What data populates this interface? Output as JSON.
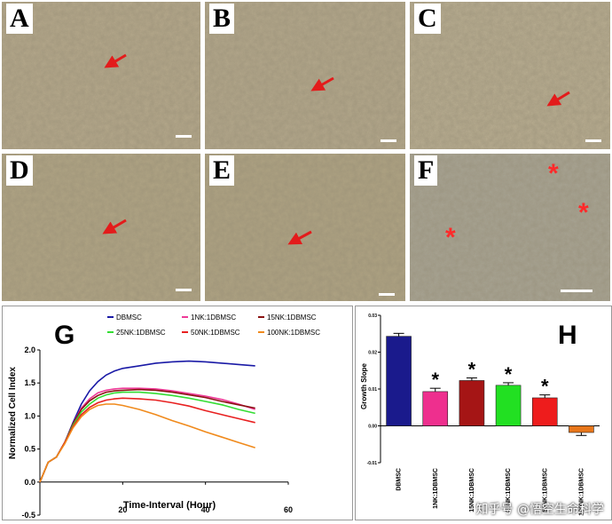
{
  "panels": {
    "A": {
      "label": "A"
    },
    "B": {
      "label": "B"
    },
    "C": {
      "label": "C"
    },
    "D": {
      "label": "D"
    },
    "E": {
      "label": "E"
    },
    "F": {
      "label": "F",
      "marker": "*"
    }
  },
  "colors": {
    "arrow": "#e31b1b",
    "star": "#ff2a2a"
  },
  "chart_data": [
    {
      "panel_label": "G",
      "type": "line",
      "xlabel": "Time-Interval (Hour)",
      "ylabel": "Normalized Cell Index",
      "xlim": [
        0,
        60
      ],
      "ylim": [
        -0.5,
        2.0
      ],
      "xticks": [
        "20",
        "40",
        "60"
      ],
      "yticks": [
        "2.0",
        "1.5",
        "1.0",
        "0.5",
        "0.0",
        "-0.5"
      ],
      "legend_placement": "top-right",
      "series": [
        {
          "name": "DBMSC",
          "color": "#1a1aa6",
          "x": [
            0,
            2,
            4,
            6,
            8,
            10,
            12,
            14,
            16,
            18,
            20,
            24,
            28,
            32,
            36,
            40,
            44,
            48,
            52
          ],
          "y": [
            0,
            0.3,
            0.38,
            0.6,
            0.9,
            1.18,
            1.38,
            1.52,
            1.62,
            1.68,
            1.72,
            1.76,
            1.8,
            1.82,
            1.83,
            1.82,
            1.8,
            1.78,
            1.76
          ]
        },
        {
          "name": "1NK:1DBMSC",
          "color": "#ee3a98",
          "x": [
            0,
            2,
            4,
            6,
            8,
            10,
            12,
            14,
            16,
            18,
            20,
            24,
            28,
            32,
            36,
            40,
            44,
            48,
            52
          ],
          "y": [
            0,
            0.3,
            0.38,
            0.6,
            0.88,
            1.12,
            1.26,
            1.35,
            1.39,
            1.41,
            1.42,
            1.42,
            1.41,
            1.38,
            1.34,
            1.3,
            1.25,
            1.18,
            1.1
          ]
        },
        {
          "name": "15NK:1DBMSC",
          "color": "#8b1313",
          "x": [
            0,
            2,
            4,
            6,
            8,
            10,
            12,
            14,
            16,
            18,
            20,
            24,
            28,
            32,
            36,
            40,
            44,
            48,
            52
          ],
          "y": [
            0,
            0.3,
            0.38,
            0.6,
            0.88,
            1.1,
            1.23,
            1.31,
            1.36,
            1.38,
            1.39,
            1.4,
            1.39,
            1.36,
            1.32,
            1.28,
            1.22,
            1.17,
            1.12
          ]
        },
        {
          "name": "25NK:1DBMSC",
          "color": "#33dd33",
          "x": [
            0,
            2,
            4,
            6,
            8,
            10,
            12,
            14,
            16,
            18,
            20,
            24,
            28,
            32,
            36,
            40,
            44,
            48,
            52
          ],
          "y": [
            0,
            0.3,
            0.38,
            0.6,
            0.86,
            1.06,
            1.18,
            1.27,
            1.32,
            1.35,
            1.36,
            1.36,
            1.34,
            1.31,
            1.27,
            1.22,
            1.17,
            1.1,
            1.04
          ]
        },
        {
          "name": "50NK:1DBMSC",
          "color": "#e82020",
          "x": [
            0,
            2,
            4,
            6,
            8,
            10,
            12,
            14,
            16,
            18,
            20,
            24,
            28,
            32,
            36,
            40,
            44,
            48,
            52
          ],
          "y": [
            0,
            0.3,
            0.38,
            0.6,
            0.84,
            1.02,
            1.13,
            1.2,
            1.24,
            1.26,
            1.27,
            1.26,
            1.24,
            1.2,
            1.15,
            1.08,
            1.02,
            0.96,
            0.9
          ]
        },
        {
          "name": "100NK:1DBMSC",
          "color": "#f08a1c",
          "x": [
            0,
            2,
            4,
            6,
            8,
            10,
            12,
            14,
            16,
            18,
            20,
            24,
            28,
            32,
            36,
            40,
            44,
            48,
            52
          ],
          "y": [
            0,
            0.3,
            0.38,
            0.58,
            0.82,
            0.99,
            1.1,
            1.16,
            1.18,
            1.18,
            1.16,
            1.1,
            1.02,
            0.93,
            0.85,
            0.76,
            0.68,
            0.6,
            0.52
          ]
        }
      ]
    },
    {
      "panel_label": "H",
      "type": "bar",
      "ylabel": "Growth Slope",
      "ylim": [
        -0.01,
        0.03
      ],
      "yticks": [
        "0.03",
        "0.02",
        "0.01",
        "0.00",
        "-0.01"
      ],
      "categories": [
        "DBMSC",
        "1NK:1DBMSC",
        "15NK:1DBMSC",
        "25NK:1DBMSC",
        "50NK:1DBMSC",
        "100NK:1DBMSC"
      ],
      "values": [
        0.0243,
        0.0093,
        0.0123,
        0.011,
        0.0076,
        -0.0018
      ],
      "errors": [
        0.0008,
        0.0009,
        0.0007,
        0.0007,
        0.0008,
        0.0008
      ],
      "colors": [
        "#1a1a8c",
        "#ee2f8e",
        "#a51515",
        "#22e022",
        "#ee1c1c",
        "#e8761a"
      ],
      "significance": [
        "",
        "*",
        "*",
        "*",
        "*",
        ""
      ]
    }
  ],
  "watermark": "知乎号 @悟空生命科学"
}
